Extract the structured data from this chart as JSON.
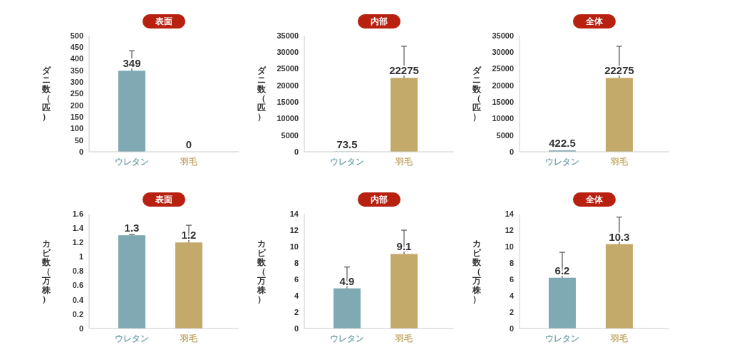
{
  "chart_data": [
    {
      "type": "bar",
      "title": "表面",
      "ylabel": "ダニ数（匹）",
      "categories": [
        "ウレタン",
        "羽毛"
      ],
      "values": [
        349,
        0
      ],
      "colors": [
        "#7fa9b3",
        "#c4aa6a"
      ],
      "errors": [
        [
          349,
          435
        ],
        null
      ],
      "ylim": [
        0,
        500
      ],
      "yticks": [
        0,
        50,
        100,
        150,
        200,
        250,
        300,
        350,
        400,
        450,
        500
      ],
      "data_labels": true
    },
    {
      "type": "bar",
      "title": "内部",
      "ylabel": "ダニ数（匹）",
      "categories": [
        "ウレタン",
        "羽毛"
      ],
      "values": [
        73.5,
        22275
      ],
      "colors": [
        "#7fa9b3",
        "#c4aa6a"
      ],
      "errors": [
        null,
        [
          22275,
          31800
        ]
      ],
      "ylim": [
        0,
        35000
      ],
      "yticks": [
        0,
        5000,
        10000,
        15000,
        20000,
        25000,
        30000,
        35000
      ],
      "data_labels": true
    },
    {
      "type": "bar",
      "title": "全体",
      "ylabel": "ダニ数（匹）",
      "categories": [
        "ウレタン",
        "羽毛"
      ],
      "values": [
        422.5,
        22275
      ],
      "colors": [
        "#7fa9b3",
        "#c4aa6a"
      ],
      "errors": [
        null,
        [
          22275,
          31800
        ]
      ],
      "ylim": [
        0,
        35000
      ],
      "yticks": [
        0,
        5000,
        10000,
        15000,
        20000,
        25000,
        30000,
        35000
      ],
      "data_labels": true
    },
    {
      "type": "bar",
      "title": "表面",
      "ylabel": "カビ数（万株）",
      "categories": [
        "ウレタン",
        "羽毛"
      ],
      "values": [
        1.3,
        1.2
      ],
      "colors": [
        "#7fa9b3",
        "#c4aa6a"
      ],
      "errors": [
        [
          1.3,
          1.31
        ],
        [
          1.2,
          1.44
        ]
      ],
      "ylim": [
        0,
        1.6
      ],
      "yticks": [
        0,
        0.2,
        0.4,
        0.6,
        0.8,
        1,
        1.2,
        1.4,
        1.6
      ],
      "data_labels": true
    },
    {
      "type": "bar",
      "title": "内部",
      "ylabel": "カビ数（万株）",
      "categories": [
        "ウレタン",
        "羽毛"
      ],
      "values": [
        4.9,
        9.1
      ],
      "colors": [
        "#7fa9b3",
        "#c4aa6a"
      ],
      "errors": [
        [
          4.9,
          7.5
        ],
        [
          9.1,
          12
        ]
      ],
      "ylim": [
        0,
        14
      ],
      "yticks": [
        0,
        2,
        4,
        6,
        8,
        10,
        12,
        14
      ],
      "data_labels": true
    },
    {
      "type": "bar",
      "title": "全体",
      "ylabel": "カビ数（万株）",
      "categories": [
        "ウレタン",
        "羽毛"
      ],
      "values": [
        6.2,
        10.3
      ],
      "colors": [
        "#7fa9b3",
        "#c4aa6a"
      ],
      "errors": [
        [
          6.2,
          9.3
        ],
        [
          10.3,
          13.6
        ]
      ],
      "ylim": [
        0,
        14
      ],
      "yticks": [
        0,
        2,
        4,
        6,
        8,
        10,
        12,
        14
      ],
      "data_labels": true
    }
  ]
}
